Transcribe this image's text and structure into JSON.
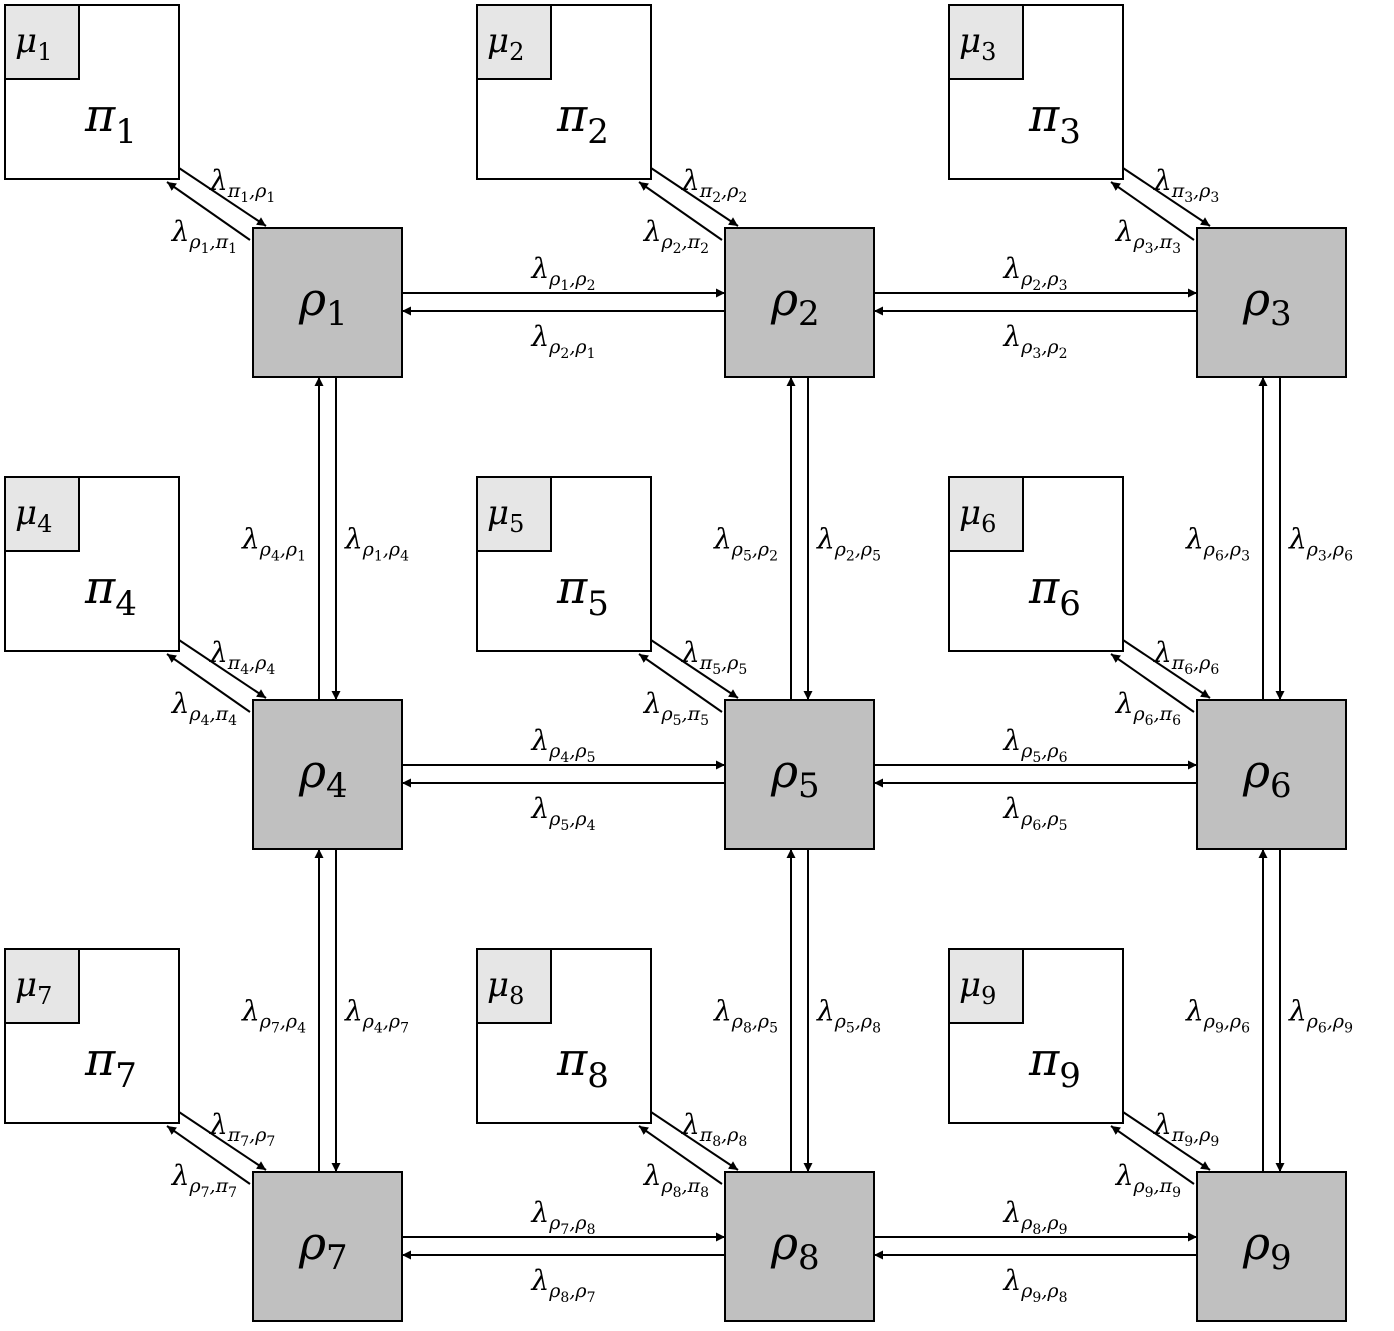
{
  "diagram": {
    "server_letter": "π",
    "mu_letter": "μ",
    "router_letter": "ρ",
    "edge_letter": "λ",
    "indices": [
      "1",
      "2",
      "3",
      "4",
      "5",
      "6",
      "7",
      "8",
      "9"
    ],
    "colors": {
      "router_fill": "#c0c0c0",
      "server_fill": "#ffffff",
      "mu_fill": "#e6e6e6",
      "stroke": "#000000"
    }
  }
}
